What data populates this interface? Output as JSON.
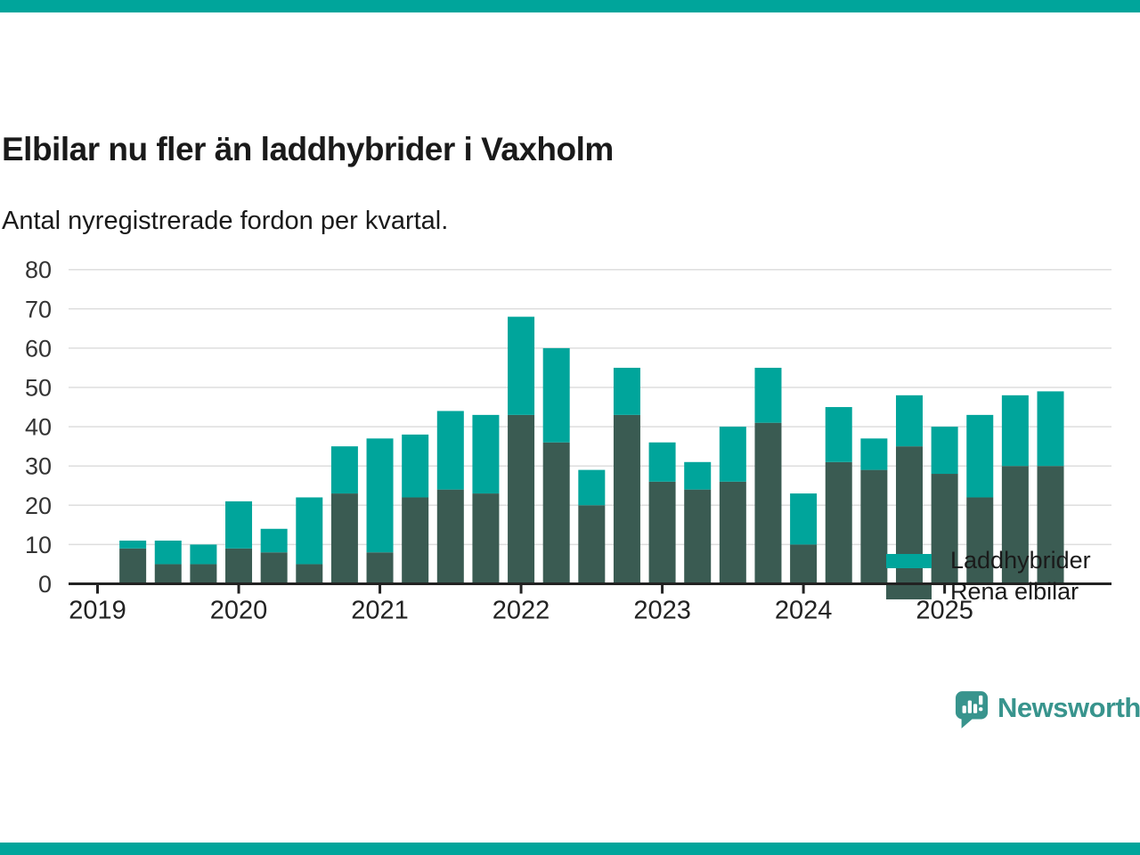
{
  "page": {
    "background": "#ffffff",
    "accent_bar_color": "#00a59b"
  },
  "header": {
    "title": "Elbilar nu fler än laddhybrider i Vaxholm",
    "subtitle": "Antal nyregistrerade fordon per kvartal."
  },
  "chart_data": {
    "type": "bar",
    "stacked": true,
    "title": "Elbilar nu fler än laddhybrider i Vaxholm",
    "subtitle": "Antal nyregistrerade fordon per kvartal.",
    "xlabel": "",
    "ylabel": "",
    "ylim": [
      0,
      80
    ],
    "y_ticks": [
      0,
      10,
      20,
      30,
      40,
      50,
      60,
      70,
      80
    ],
    "grid": "horizontal",
    "legend_position": "top-right",
    "x_year_ticks": [
      "2019",
      "2020",
      "2021",
      "2022",
      "2023",
      "2024",
      "2025"
    ],
    "categories": [
      "2019-Q2",
      "2019-Q3",
      "2019-Q4",
      "2020-Q1",
      "2020-Q2",
      "2020-Q3",
      "2020-Q4",
      "2021-Q1",
      "2021-Q2",
      "2021-Q3",
      "2021-Q4",
      "2022-Q1",
      "2022-Q2",
      "2022-Q3",
      "2022-Q4",
      "2023-Q1",
      "2023-Q2",
      "2023-Q3",
      "2023-Q4",
      "2024-Q1",
      "2024-Q2",
      "2024-Q3",
      "2024-Q4",
      "2025-Q1",
      "2025-Q2",
      "2025-Q3",
      "2025-Q4"
    ],
    "stack_order_bottom_to_top": [
      "Rena elbilar",
      "Laddhybrider"
    ],
    "series": [
      {
        "name": "Laddhybrider",
        "color": "#00a59b",
        "values": [
          2,
          6,
          5,
          12,
          6,
          17,
          12,
          29,
          16,
          20,
          20,
          25,
          24,
          9,
          12,
          10,
          7,
          14,
          14,
          13,
          14,
          8,
          13,
          12,
          21,
          18,
          19
        ]
      },
      {
        "name": "Rena elbilar",
        "color": "#3a5b52",
        "values": [
          9,
          5,
          5,
          9,
          8,
          5,
          23,
          8,
          22,
          24,
          23,
          43,
          36,
          20,
          43,
          26,
          24,
          26,
          41,
          10,
          31,
          29,
          35,
          28,
          22,
          30,
          30
        ]
      }
    ],
    "totals": [
      11,
      11,
      10,
      21,
      14,
      22,
      35,
      37,
      38,
      44,
      43,
      68,
      60,
      29,
      55,
      36,
      31,
      40,
      55,
      23,
      45,
      37,
      48,
      40,
      43,
      48,
      49
    ]
  },
  "legend": {
    "items": [
      {
        "label": "Laddhybrider",
        "color": "#00a59b"
      },
      {
        "label": "Rena elbilar",
        "color": "#3a5b52"
      }
    ]
  },
  "footer": {
    "brand": "Newsworthy",
    "brand_color": "#38948d"
  }
}
